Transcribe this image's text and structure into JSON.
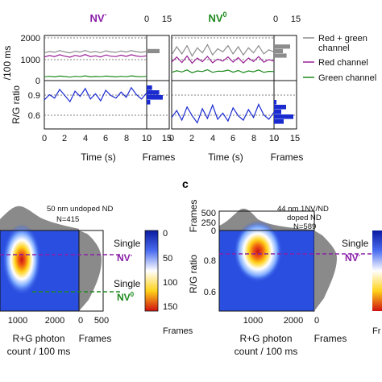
{
  "panel_top": {
    "title_nv_minus": "NV",
    "title_nv_minus_sup": "-",
    "title_nv_zero": "NV",
    "title_nv_zero_sup": "0",
    "ylabel_counts": "/100 ms",
    "ylabel_ratio": "R/G ratio",
    "xlabel_time": "Time (s)",
    "xlabel_frames": "Frames",
    "legend": [
      "Red + green channel",
      "Red channel",
      "Green channel"
    ],
    "colors": {
      "sum": "#8c8c8c",
      "red": "#9a1f96",
      "green": "#1e8a1e",
      "ratio": "#1a2bd0",
      "nv_minus": "#8a1fa8",
      "nv_zero": "#1e8a1e"
    }
  },
  "panel_bottom": {
    "label_c": "c",
    "left_annotation_line1": "50 nm undoped ND",
    "left_annotation_line2": "N=415",
    "right_annotation_line1": "44 nm 1NV/ND",
    "right_annotation_line2": "doped ND",
    "right_annotation_line3": "N=589",
    "single_label": "Single",
    "nv_minus": "NV",
    "nv_minus_sup": "-",
    "nv_zero": "NV",
    "nv_zero_sup": "0",
    "xlabel_line1": "R+G photon",
    "xlabel_line2": "count / 100 ms",
    "xlabel_frames": "Frames",
    "ylabel_ratio": "R/G ratio",
    "ylabel_frames": "Frames",
    "colorbar_label": "Frames",
    "colorbar_label_cut": "Fr"
  },
  "chart_data": [
    {
      "type": "line",
      "id": "top-left-counts",
      "x": [
        0,
        0.5,
        1,
        1.5,
        2,
        2.5,
        3,
        3.5,
        4,
        4.5,
        5,
        5.5,
        6,
        6.5,
        7,
        7.5,
        8,
        8.5,
        9,
        9.5,
        10
      ],
      "series": [
        {
          "name": "Red + green channel",
          "values": [
            1350,
            1420,
            1380,
            1460,
            1400,
            1350,
            1430,
            1390,
            1470,
            1380,
            1420,
            1360,
            1450,
            1400,
            1380,
            1440,
            1390,
            1460,
            1410,
            1380,
            1420
          ]
        },
        {
          "name": "Red channel",
          "values": [
            1150,
            1220,
            1170,
            1260,
            1190,
            1140,
            1230,
            1180,
            1270,
            1170,
            1210,
            1150,
            1250,
            1190,
            1170,
            1240,
            1180,
            1260,
            1200,
            1170,
            1210
          ]
        },
        {
          "name": "Green channel",
          "values": [
            190,
            210,
            180,
            220,
            200,
            170,
            210,
            190,
            230,
            180,
            200,
            190,
            220,
            200,
            180,
            210,
            190,
            230,
            200,
            190,
            210
          ]
        }
      ],
      "xlim": [
        0,
        10
      ],
      "ylim": [
        0,
        2200
      ],
      "yticks": [
        0,
        1000,
        2000
      ],
      "xticks": [
        0,
        2,
        4,
        6,
        8,
        10
      ],
      "ref_lines": [
        1000,
        2000
      ]
    },
    {
      "type": "line",
      "id": "top-right-counts",
      "x": [
        0,
        0.5,
        1,
        1.5,
        2,
        2.5,
        3,
        3.5,
        4,
        4.5,
        5,
        5.5,
        6,
        6.5,
        7,
        7.5,
        8,
        8.5,
        9,
        9.5,
        10
      ],
      "series": [
        {
          "name": "Red + green channel",
          "values": [
            1250,
            1650,
            1300,
            1700,
            1200,
            1600,
            1350,
            1750,
            1250,
            1550,
            1400,
            1700,
            1300,
            1650,
            1250,
            1600,
            1350,
            1700,
            1300,
            1500,
            1400
          ]
        },
        {
          "name": "Red channel",
          "values": [
            900,
            1150,
            880,
            1200,
            850,
            1100,
            920,
            1180,
            870,
            1050,
            950,
            1150,
            900,
            1120,
            860,
            1100,
            930,
            1170,
            900,
            1020,
            950
          ]
        },
        {
          "name": "Green channel",
          "values": [
            400,
            480,
            420,
            520,
            380,
            470,
            440,
            530,
            400,
            460,
            450,
            510,
            410,
            490,
            390,
            470,
            430,
            520,
            400,
            450,
            440
          ]
        }
      ],
      "xlim": [
        0,
        10
      ],
      "ylim": [
        0,
        2200
      ],
      "xticks": [
        0,
        2,
        4,
        6,
        8,
        10
      ]
    },
    {
      "type": "line",
      "id": "top-left-ratio",
      "x": [
        0,
        0.5,
        1,
        1.5,
        2,
        2.5,
        3,
        3.5,
        4,
        4.5,
        5,
        5.5,
        6,
        6.5,
        7,
        7.5,
        8,
        8.5,
        9,
        9.5,
        10
      ],
      "series": [
        {
          "name": "",
          "values": [
            0.78,
            0.84,
            0.8,
            0.9,
            0.83,
            0.76,
            0.88,
            0.82,
            0.91,
            0.79,
            0.85,
            0.77,
            0.89,
            0.83,
            0.8,
            0.87,
            0.81,
            0.92,
            0.84,
            0.79,
            0.86
          ]
        }
      ],
      "xlim": [
        0,
        10
      ],
      "ylim": [
        0.45,
        1.0
      ],
      "yticks": [
        0.6,
        0.9
      ],
      "ref_lines": [
        0.6,
        0.9
      ]
    },
    {
      "type": "line",
      "id": "top-right-ratio",
      "x": [
        0,
        0.5,
        1,
        1.5,
        2,
        2.5,
        3,
        3.5,
        4,
        4.5,
        5,
        5.5,
        6,
        6.5,
        7,
        7.5,
        8,
        8.5,
        9,
        9.5,
        10
      ],
      "series": [
        {
          "name": "",
          "values": [
            0.58,
            0.66,
            0.55,
            0.7,
            0.6,
            0.52,
            0.68,
            0.57,
            0.72,
            0.56,
            0.63,
            0.54,
            0.69,
            0.6,
            0.55,
            0.67,
            0.58,
            0.73,
            0.61,
            0.56,
            0.64
          ]
        }
      ],
      "xlim": [
        0,
        10
      ],
      "ylim": [
        0.45,
        1.0
      ]
    },
    {
      "type": "bar",
      "id": "top-frames-histograms",
      "xlabel": "Frames",
      "xlim": [
        0,
        15
      ],
      "xticks": [
        0,
        15
      ]
    },
    {
      "type": "heatmap",
      "id": "bottom-left-2d-histogram",
      "xticks": [
        1000,
        2000,
        0,
        500
      ],
      "colorbar_ticks": [
        0,
        50,
        100,
        150
      ],
      "colorbar_range": [
        0,
        170
      ],
      "peak": {
        "x": 1000,
        "ratio": 0.85
      },
      "reference_lines": [
        {
          "label": "Single NV-",
          "ratio": 0.85
        },
        {
          "label": "Single NV0",
          "ratio": 0.6
        }
      ]
    },
    {
      "type": "heatmap",
      "id": "bottom-right-2d-histogram",
      "xticks": [
        1000,
        2000,
        0
      ],
      "yticks_ratio": [
        0.6,
        0.8
      ],
      "yticks_frames": [
        0,
        250,
        500
      ],
      "peak": {
        "x": 1000,
        "ratio": 0.85
      },
      "reference_lines": [
        {
          "label": "Single NV-",
          "ratio": 0.85
        }
      ]
    }
  ]
}
